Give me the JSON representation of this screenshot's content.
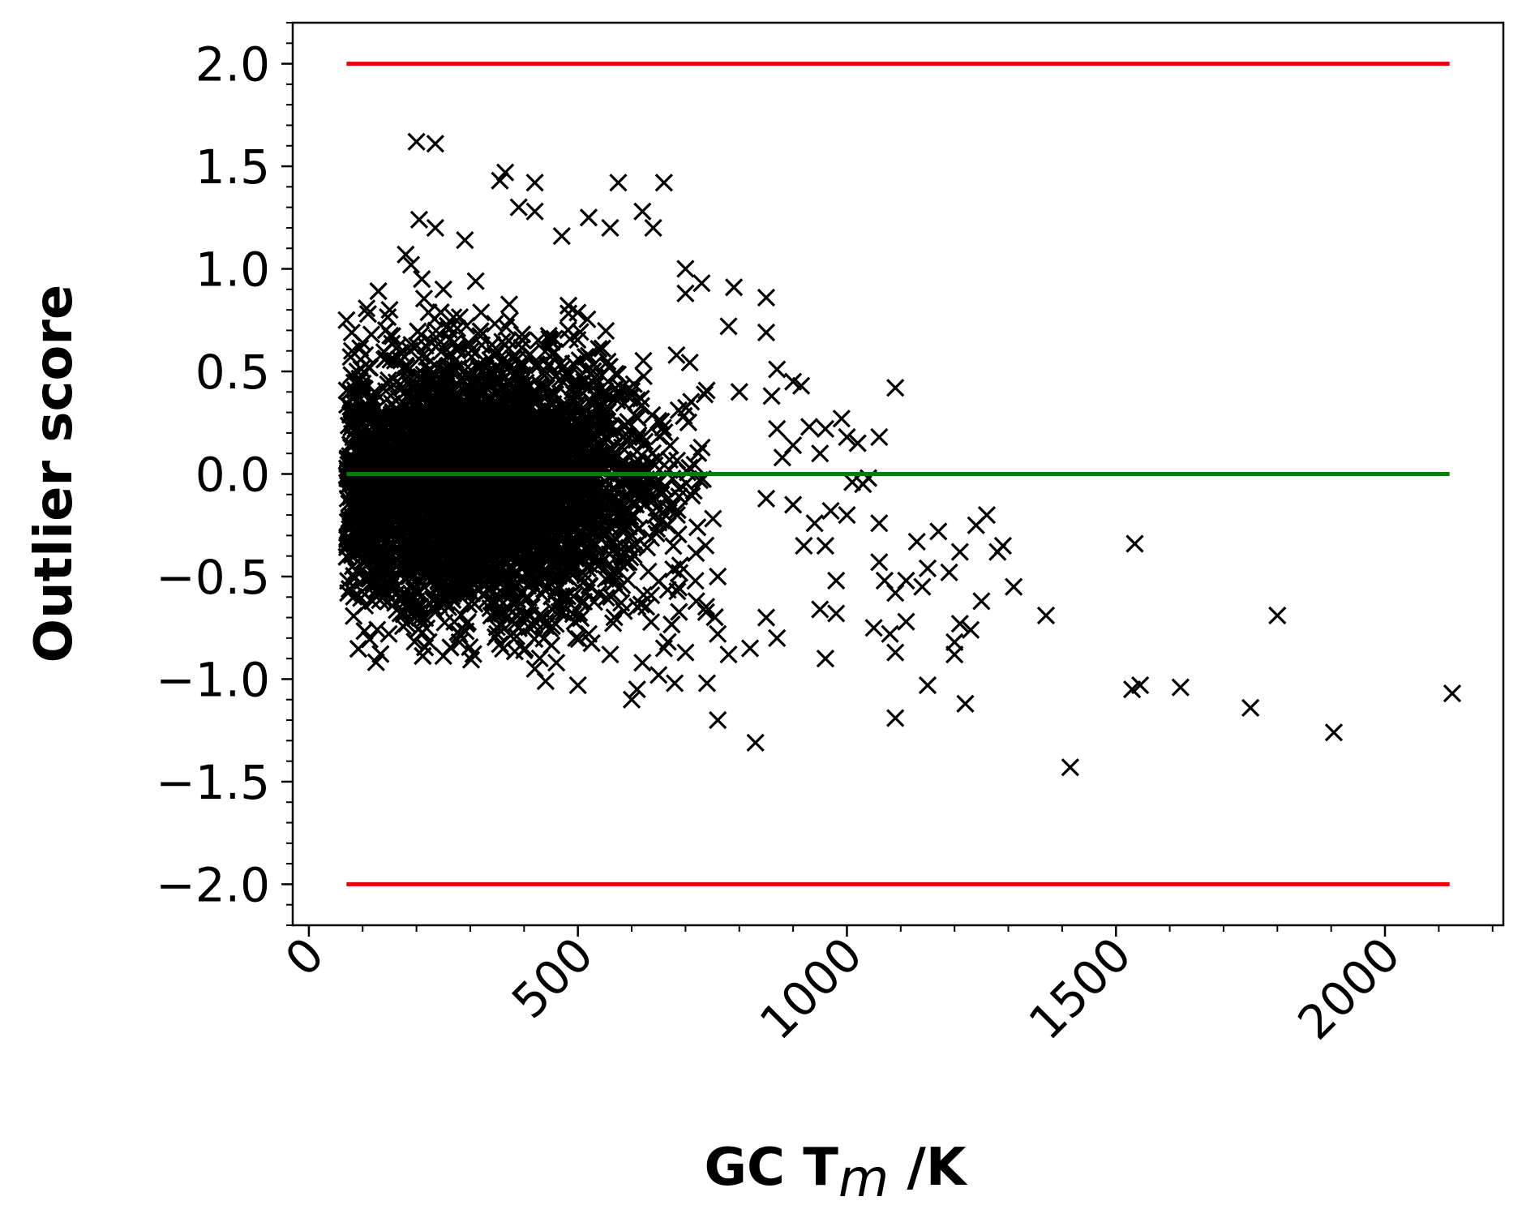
{
  "chart_data": {
    "type": "scatter",
    "xlabel": "GC T",
    "xlabel_sub": "m",
    "xlabel_suffix": " /K",
    "ylabel": "Outlier score",
    "xlim": [
      -30,
      2220
    ],
    "ylim": [
      -2.2,
      2.2
    ],
    "x_major_ticks": [
      0,
      500,
      1000,
      1500,
      2000
    ],
    "y_major_ticks": [
      -2.0,
      -1.5,
      -1.0,
      -0.5,
      0.0,
      0.5,
      1.0,
      1.5,
      2.0
    ],
    "x_tick_labels": [
      "0",
      "500",
      "1000",
      "1500",
      "2000"
    ],
    "y_tick_labels": [
      "−2.0",
      "−1.5",
      "−1.0",
      "−0.5",
      "0.0",
      "0.5",
      "1.0",
      "1.5",
      "2.0"
    ],
    "grid": false,
    "marker": "x",
    "marker_color": "#000000",
    "reference_lines": [
      {
        "y": 2.0,
        "x_range": [
          70,
          2120
        ],
        "color": "#e8000b"
      },
      {
        "y": -2.0,
        "x_range": [
          70,
          2120
        ],
        "color": "#e8000b"
      },
      {
        "y": 0.0,
        "x_range": [
          70,
          2120
        ],
        "color": "#008000"
      }
    ],
    "cluster": {
      "x_center": 330,
      "x_spread": 150,
      "y_center": -0.05,
      "y_spread": 0.3,
      "count": 5200
    },
    "outliers": [
      [
        200,
        1.62
      ],
      [
        235,
        1.61
      ],
      [
        205,
        1.24
      ],
      [
        235,
        1.2
      ],
      [
        290,
        1.14
      ],
      [
        365,
        1.47
      ],
      [
        355,
        1.43
      ],
      [
        420,
        1.42
      ],
      [
        575,
        1.42
      ],
      [
        660,
        1.42
      ],
      [
        390,
        1.3
      ],
      [
        420,
        1.28
      ],
      [
        520,
        1.25
      ],
      [
        620,
        1.28
      ],
      [
        640,
        1.2
      ],
      [
        470,
        1.16
      ],
      [
        560,
        1.2
      ],
      [
        700,
        1.0
      ],
      [
        730,
        0.93
      ],
      [
        790,
        0.91
      ],
      [
        850,
        0.86
      ],
      [
        780,
        0.72
      ],
      [
        850,
        0.69
      ],
      [
        700,
        0.88
      ],
      [
        70,
        0.75
      ],
      [
        110,
        0.78
      ],
      [
        150,
        0.8
      ],
      [
        80,
        0.6
      ],
      [
        90,
        0.5
      ],
      [
        180,
        1.07
      ],
      [
        190,
        1.02
      ],
      [
        210,
        0.95
      ],
      [
        250,
        0.9
      ],
      [
        310,
        0.94
      ],
      [
        870,
        0.51
      ],
      [
        900,
        0.45
      ],
      [
        915,
        0.43
      ],
      [
        860,
        0.38
      ],
      [
        800,
        0.4
      ],
      [
        1090,
        0.42
      ],
      [
        990,
        0.27
      ],
      [
        1000,
        0.18
      ],
      [
        1020,
        0.15
      ],
      [
        1060,
        0.18
      ],
      [
        870,
        0.22
      ],
      [
        930,
        0.23
      ],
      [
        960,
        0.22
      ],
      [
        900,
        0.14
      ],
      [
        880,
        0.08
      ],
      [
        950,
        0.1
      ],
      [
        1010,
        -0.04
      ],
      [
        1030,
        -0.05
      ],
      [
        1040,
        -0.02
      ],
      [
        850,
        -0.12
      ],
      [
        900,
        -0.15
      ],
      [
        940,
        -0.24
      ],
      [
        970,
        -0.18
      ],
      [
        1000,
        -0.2
      ],
      [
        1060,
        -0.24
      ],
      [
        920,
        -0.35
      ],
      [
        960,
        -0.35
      ],
      [
        980,
        -0.52
      ],
      [
        1060,
        -0.43
      ],
      [
        1070,
        -0.52
      ],
      [
        1090,
        -0.58
      ],
      [
        1110,
        -0.52
      ],
      [
        1140,
        -0.55
      ],
      [
        1150,
        -0.46
      ],
      [
        1130,
        -0.33
      ],
      [
        1170,
        -0.28
      ],
      [
        1190,
        -0.48
      ],
      [
        1210,
        -0.38
      ],
      [
        1240,
        -0.25
      ],
      [
        1260,
        -0.2
      ],
      [
        1280,
        -0.38
      ],
      [
        1290,
        -0.35
      ],
      [
        1310,
        -0.55
      ],
      [
        1250,
        -0.62
      ],
      [
        1370,
        -0.69
      ],
      [
        1050,
        -0.75
      ],
      [
        1080,
        -0.78
      ],
      [
        1090,
        -0.87
      ],
      [
        1110,
        -0.72
      ],
      [
        1210,
        -0.73
      ],
      [
        1230,
        -0.76
      ],
      [
        1200,
        -0.82
      ],
      [
        1200,
        -0.88
      ],
      [
        960,
        -0.9
      ],
      [
        1150,
        -1.03
      ],
      [
        1220,
        -1.12
      ],
      [
        1090,
        -1.19
      ],
      [
        980,
        -0.68
      ],
      [
        950,
        -0.66
      ],
      [
        870,
        -0.8
      ],
      [
        850,
        -0.7
      ],
      [
        820,
        -0.85
      ],
      [
        780,
        -0.88
      ],
      [
        760,
        -0.78
      ],
      [
        740,
        -1.02
      ],
      [
        760,
        -1.2
      ],
      [
        830,
        -1.31
      ],
      [
        680,
        -1.02
      ],
      [
        600,
        -1.1
      ],
      [
        610,
        -1.05
      ],
      [
        500,
        -1.03
      ],
      [
        440,
        -1.01
      ],
      [
        660,
        -0.85
      ],
      [
        700,
        -0.87
      ],
      [
        720,
        -0.62
      ],
      [
        760,
        -0.5
      ],
      [
        1415,
        -1.43
      ],
      [
        1530,
        -1.05
      ],
      [
        1545,
        -1.03
      ],
      [
        1535,
        -0.34
      ],
      [
        1620,
        -1.04
      ],
      [
        1750,
        -1.14
      ],
      [
        1800,
        -0.69
      ],
      [
        1905,
        -1.26
      ],
      [
        2125,
        -1.07
      ],
      [
        200,
        -0.62
      ],
      [
        170,
        -0.68
      ],
      [
        280,
        -0.82
      ],
      [
        350,
        -0.78
      ],
      [
        400,
        -0.86
      ],
      [
        420,
        -0.95
      ],
      [
        460,
        -0.92
      ],
      [
        520,
        -0.78
      ],
      [
        560,
        -0.88
      ],
      [
        620,
        -0.92
      ],
      [
        650,
        -0.98
      ],
      [
        130,
        -0.4
      ],
      [
        110,
        -0.3
      ],
      [
        90,
        -0.2
      ],
      [
        100,
        0.1
      ],
      [
        95,
        0.25
      ]
    ]
  }
}
